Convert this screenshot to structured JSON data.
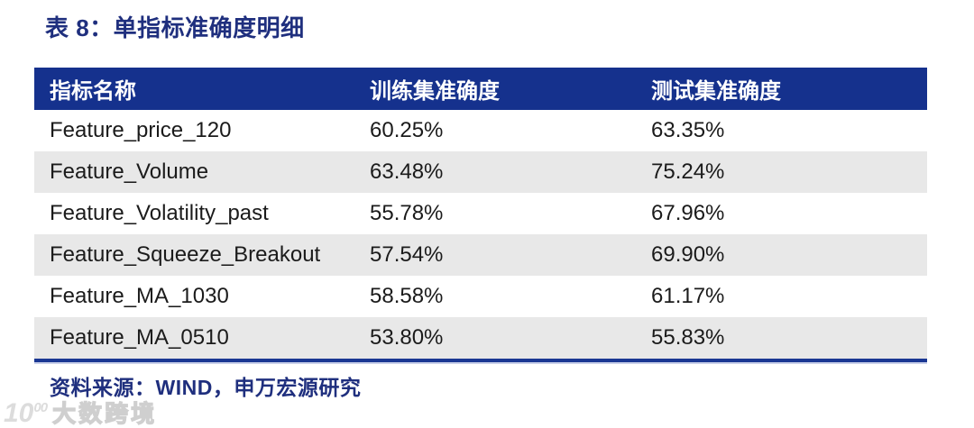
{
  "title": "表 8：单指标准确度明细",
  "table": {
    "columns": [
      "指标名称",
      "训练集准确度",
      "测试集准确度"
    ],
    "rows": [
      {
        "name": "Feature_price_120",
        "train": "60.25%",
        "test": "63.35%"
      },
      {
        "name": "Feature_Volume",
        "train": "63.48%",
        "test": "75.24%"
      },
      {
        "name": "Feature_Volatility_past",
        "train": "55.78%",
        "test": "67.96%"
      },
      {
        "name": "Feature_Squeeze_Breakout",
        "train": "57.54%",
        "test": "69.90%"
      },
      {
        "name": "Feature_MA_1030",
        "train": "58.58%",
        "test": "61.17%"
      },
      {
        "name": "Feature_MA_0510",
        "train": "53.80%",
        "test": "55.83%"
      }
    ]
  },
  "source": "资料来源：WIND，申万宏源研究",
  "watermark": {
    "logo": "10",
    "logo_sup": "00",
    "text": "大数跨境"
  },
  "colors": {
    "header_bg": "#15318D",
    "accent_text": "#1F2F7E",
    "row_alt": "#E8E8E8",
    "border": "#1A3793",
    "body_text": "#1B1B1B"
  }
}
